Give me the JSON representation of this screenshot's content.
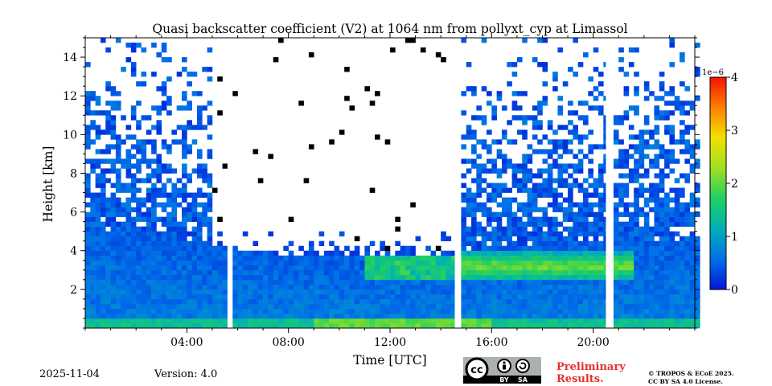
{
  "chart_data": {
    "type": "heatmap",
    "title": "Quasi backscatter coefficient (V2) at 1064 nm from pollyxt_cyp at Limassol",
    "xlabel": "Time [UTC]",
    "ylabel": "Height [km]",
    "xlim_hours": [
      0,
      24
    ],
    "ylim_km": [
      0,
      15
    ],
    "x_ticks": [
      {
        "hour": 4,
        "label": "04:00"
      },
      {
        "hour": 8,
        "label": "08:00"
      },
      {
        "hour": 12,
        "label": "12:00"
      },
      {
        "hour": 16,
        "label": "16:00"
      },
      {
        "hour": 20,
        "label": "20:00"
      }
    ],
    "y_ticks": [
      {
        "value": 2,
        "label": "2"
      },
      {
        "value": 4,
        "label": "4"
      },
      {
        "value": 6,
        "label": "6"
      },
      {
        "value": 8,
        "label": "8"
      },
      {
        "value": 10,
        "label": "10"
      },
      {
        "value": 12,
        "label": "12"
      },
      {
        "value": 14,
        "label": "14"
      }
    ],
    "colorbar": {
      "multiplier_label": "1e−6",
      "range": [
        0,
        4
      ],
      "ticks": [
        {
          "value": 0,
          "label": "0"
        },
        {
          "value": 1,
          "label": "1"
        },
        {
          "value": 2,
          "label": "2"
        },
        {
          "value": 3,
          "label": "3"
        },
        {
          "value": 4,
          "label": "4"
        }
      ],
      "colormap": [
        "#0018d8",
        "#0070e8",
        "#00b0b8",
        "#20d060",
        "#a0e020",
        "#f0e000",
        "#ff8000",
        "#f81000"
      ]
    },
    "data_gaps_hours": [
      [
        5.6,
        5.8
      ],
      [
        14.55,
        14.75
      ],
      [
        20.5,
        20.7
      ]
    ],
    "layers": [
      {
        "name": "boundary layer aerosol",
        "t_start": 0,
        "t_end": 24,
        "top_km": [
          5.2,
          5.0,
          4.6,
          4.1,
          3.8,
          3.7,
          3.7,
          3.8,
          4.1,
          4.4,
          4.6,
          4.6,
          4.5
        ]
      },
      {
        "name": "elevated dust layer",
        "t_start": 14.7,
        "t_end": 21.5,
        "base_km": 2.4,
        "top_km": 4.0,
        "peak_value": 2.2
      },
      {
        "name": "surface layer",
        "t_start": 0,
        "t_end": 24,
        "base_km": 0,
        "top_km": 0.6,
        "peak_value": 2.0
      }
    ]
  },
  "footer": {
    "date": "2025-11-04",
    "version": "Version: 4.0",
    "preliminary_line1": "Preliminary",
    "preliminary_line2": "Results.",
    "copyright_line1": "© TROPOS & ECoE 2025.",
    "copyright_line2": "CC BY SA 4.0 License.",
    "cc_text": "cc",
    "by_text": "BY",
    "sa_text": "SA"
  }
}
